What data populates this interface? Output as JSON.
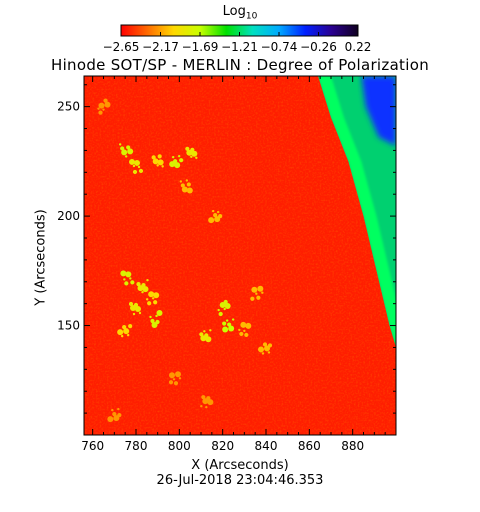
{
  "chart_data": {
    "type": "heatmap",
    "title": "Hinode SOT/SP - MERLIN : Degree of Polarization",
    "xlabel": "X (Arcseconds)",
    "ylabel": "Y (Arcseconds)",
    "colorbar": {
      "label_base": "Log",
      "label_sub": "10",
      "range": [
        -2.65,
        0.22
      ],
      "tick_labels": [
        "−2.65",
        "−2.17",
        "−1.69",
        "−1.21",
        "−0.74",
        "−0.26",
        "0.22"
      ],
      "colormap": [
        "#ff0000",
        "#ff6a00",
        "#ffd800",
        "#c8ff00",
        "#00e000",
        "#00e0c0",
        "#00aaff",
        "#0020ff",
        "#2a0090",
        "#100020"
      ]
    },
    "xlim": [
      756,
      900
    ],
    "ylim": [
      100,
      264
    ],
    "x_ticks": [
      760,
      780,
      800,
      820,
      840,
      860,
      880
    ],
    "y_ticks": [
      150,
      200,
      250
    ],
    "x_tick_labels": [
      "760",
      "780",
      "800",
      "820",
      "840",
      "860",
      "880"
    ],
    "y_tick_labels": [
      "150",
      "200",
      "250"
    ],
    "limb_boundary": [
      [
        864,
        264
      ],
      [
        870,
        245
      ],
      [
        878,
        225
      ],
      [
        885,
        200
      ],
      [
        891,
        175
      ],
      [
        897,
        150
      ],
      [
        900,
        140
      ]
    ],
    "limb_glow_width_arcsec": 6,
    "regions": [
      {
        "name": "disk",
        "log_value": -2.6,
        "color": "#ff1e00"
      },
      {
        "name": "limb",
        "log_value": -1.5,
        "color": "#00ff60"
      },
      {
        "name": "off-limb",
        "log_value": -1.0,
        "color": "#00d070"
      },
      {
        "name": "upper-corner",
        "log_value": -0.5,
        "color": "#1030ff"
      }
    ],
    "features": [
      {
        "x": 775,
        "y": 230,
        "log_value": -1.8
      },
      {
        "x": 780,
        "y": 222,
        "log_value": -1.9
      },
      {
        "x": 790,
        "y": 225,
        "log_value": -2.0
      },
      {
        "x": 799,
        "y": 226,
        "log_value": -1.8
      },
      {
        "x": 806,
        "y": 228,
        "log_value": -1.9
      },
      {
        "x": 803,
        "y": 214,
        "log_value": -2.1
      },
      {
        "x": 776,
        "y": 172,
        "log_value": -1.8
      },
      {
        "x": 783,
        "y": 168,
        "log_value": -1.9
      },
      {
        "x": 787,
        "y": 162,
        "log_value": -2.0
      },
      {
        "x": 780,
        "y": 158,
        "log_value": -1.9
      },
      {
        "x": 789,
        "y": 153,
        "log_value": -1.8
      },
      {
        "x": 775,
        "y": 147,
        "log_value": -2.0
      },
      {
        "x": 812,
        "y": 146,
        "log_value": -1.9
      },
      {
        "x": 820,
        "y": 158,
        "log_value": -1.8
      },
      {
        "x": 823,
        "y": 150,
        "log_value": -1.7
      },
      {
        "x": 830,
        "y": 148,
        "log_value": -2.1
      },
      {
        "x": 840,
        "y": 140,
        "log_value": -2.1
      },
      {
        "x": 798,
        "y": 125,
        "log_value": -2.2
      },
      {
        "x": 812,
        "y": 115,
        "log_value": -2.2
      },
      {
        "x": 770,
        "y": 110,
        "log_value": -2.2
      },
      {
        "x": 765,
        "y": 250,
        "log_value": -2.2
      },
      {
        "x": 817,
        "y": 200,
        "log_value": -2.1
      },
      {
        "x": 836,
        "y": 165,
        "log_value": -2.1
      }
    ]
  },
  "footer": {
    "date": "26-Jul-2018 23:04:46.353"
  }
}
